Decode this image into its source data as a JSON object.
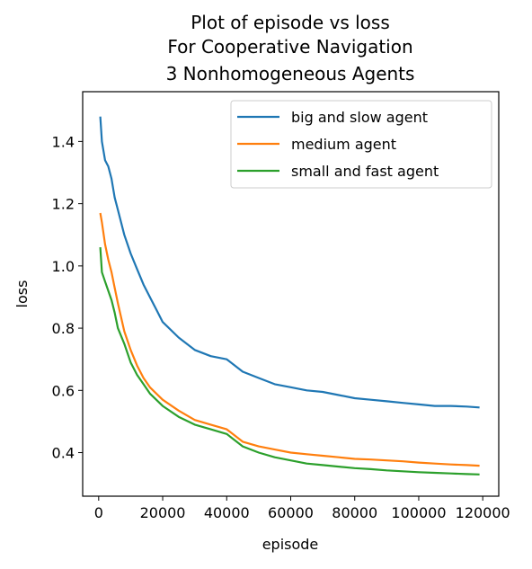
{
  "chart_data": {
    "type": "line",
    "title_lines": [
      "Plot of episode vs loss",
      "For Cooperative Navigation",
      "3 Nonhomogeneous Agents"
    ],
    "xlabel": "episode",
    "ylabel": "loss",
    "xlim": [
      -5000,
      125000
    ],
    "ylim": [
      0.26,
      1.56
    ],
    "xticks": [
      0,
      20000,
      40000,
      60000,
      80000,
      100000,
      120000
    ],
    "xtick_labels": [
      "0",
      "20000",
      "40000",
      "60000",
      "80000",
      "100000",
      "120000"
    ],
    "yticks": [
      0.4,
      0.6,
      0.8,
      1.0,
      1.2,
      1.4
    ],
    "ytick_labels": [
      "0.4",
      "0.6",
      "0.8",
      "1.0",
      "1.2",
      "1.4"
    ],
    "grid": false,
    "legend_position": "top-right",
    "x": [
      500,
      1000,
      2000,
      3000,
      4000,
      5000,
      6000,
      8000,
      10000,
      12000,
      14000,
      16000,
      18000,
      20000,
      25000,
      30000,
      35000,
      40000,
      45000,
      50000,
      55000,
      60000,
      65000,
      70000,
      75000,
      80000,
      85000,
      90000,
      95000,
      100000,
      105000,
      110000,
      115000,
      119000
    ],
    "series": [
      {
        "name": "big and slow agent",
        "color": "#1f77b4",
        "values": [
          1.48,
          1.4,
          1.34,
          1.32,
          1.28,
          1.22,
          1.18,
          1.1,
          1.04,
          0.99,
          0.94,
          0.9,
          0.86,
          0.82,
          0.77,
          0.73,
          0.71,
          0.7,
          0.66,
          0.64,
          0.62,
          0.61,
          0.6,
          0.595,
          0.585,
          0.575,
          0.57,
          0.565,
          0.56,
          0.555,
          0.55,
          0.55,
          0.548,
          0.545
        ]
      },
      {
        "name": "medium agent",
        "color": "#ff7f0e",
        "values": [
          1.17,
          1.14,
          1.07,
          1.02,
          0.98,
          0.93,
          0.88,
          0.79,
          0.73,
          0.68,
          0.64,
          0.61,
          0.59,
          0.57,
          0.535,
          0.505,
          0.49,
          0.475,
          0.435,
          0.42,
          0.41,
          0.4,
          0.395,
          0.39,
          0.385,
          0.38,
          0.378,
          0.375,
          0.372,
          0.368,
          0.365,
          0.362,
          0.36,
          0.358
        ]
      },
      {
        "name": "small and fast agent",
        "color": "#2ca02c",
        "values": [
          1.06,
          0.98,
          0.95,
          0.92,
          0.89,
          0.85,
          0.8,
          0.75,
          0.69,
          0.65,
          0.62,
          0.59,
          0.57,
          0.55,
          0.515,
          0.49,
          0.475,
          0.46,
          0.42,
          0.4,
          0.385,
          0.375,
          0.365,
          0.36,
          0.355,
          0.35,
          0.347,
          0.343,
          0.34,
          0.337,
          0.335,
          0.333,
          0.331,
          0.33
        ]
      }
    ]
  }
}
